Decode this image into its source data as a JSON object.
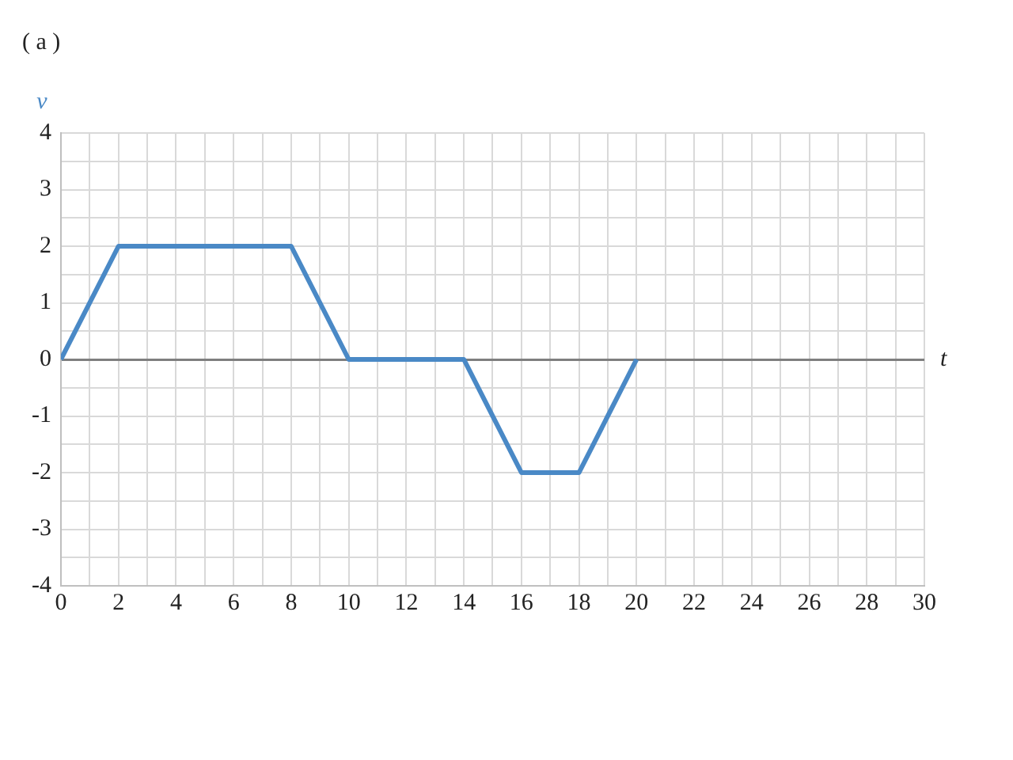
{
  "chart_data": {
    "type": "line",
    "title": "( a )",
    "xlabel": "t",
    "ylabel": "v",
    "x": [
      0,
      2,
      8,
      10,
      14,
      16,
      18,
      20
    ],
    "series": [
      {
        "color": "#4a89c6",
        "values": [
          0,
          2,
          2,
          0,
          0,
          -2,
          -2,
          0
        ]
      }
    ],
    "xlim": [
      0,
      30
    ],
    "xticks": [
      0,
      {
        "value": 1,
        "label": null
      },
      2,
      {
        "value": 3,
        "label": null
      },
      4,
      {
        "value": 5,
        "label": null
      },
      6,
      {
        "value": 7,
        "label": null
      },
      8,
      {
        "value": 9,
        "label": null
      },
      10,
      {
        "value": 11,
        "label": null
      },
      12,
      {
        "value": 13,
        "label": null
      },
      14,
      {
        "value": 15,
        "label": null
      },
      16,
      {
        "value": 17,
        "label": null
      },
      18,
      {
        "value": 19,
        "label": null
      },
      20,
      {
        "value": 21,
        "label": null
      },
      22,
      {
        "value": 23,
        "label": null
      },
      24,
      {
        "value": 25,
        "label": null
      },
      26,
      {
        "value": 27,
        "label": null
      },
      28,
      {
        "value": 29,
        "label": null
      },
      30
    ],
    "ylim": [
      -4,
      4
    ],
    "yticks": [
      -4,
      {
        "value": -3.5,
        "label": null
      },
      -3,
      {
        "value": -2.5,
        "label": null
      },
      -2,
      {
        "value": -1.5,
        "label": null
      },
      -1,
      {
        "value": -0.5,
        "label": null
      },
      0,
      {
        "value": 0.5,
        "label": null
      },
      1,
      {
        "value": 1.5,
        "label": null
      },
      2,
      {
        "value": 2.5,
        "label": null
      },
      3,
      {
        "value": 3.5,
        "label": null
      },
      4
    ],
    "grid": true,
    "legend": false,
    "marker": "none",
    "line_style": "solid"
  }
}
